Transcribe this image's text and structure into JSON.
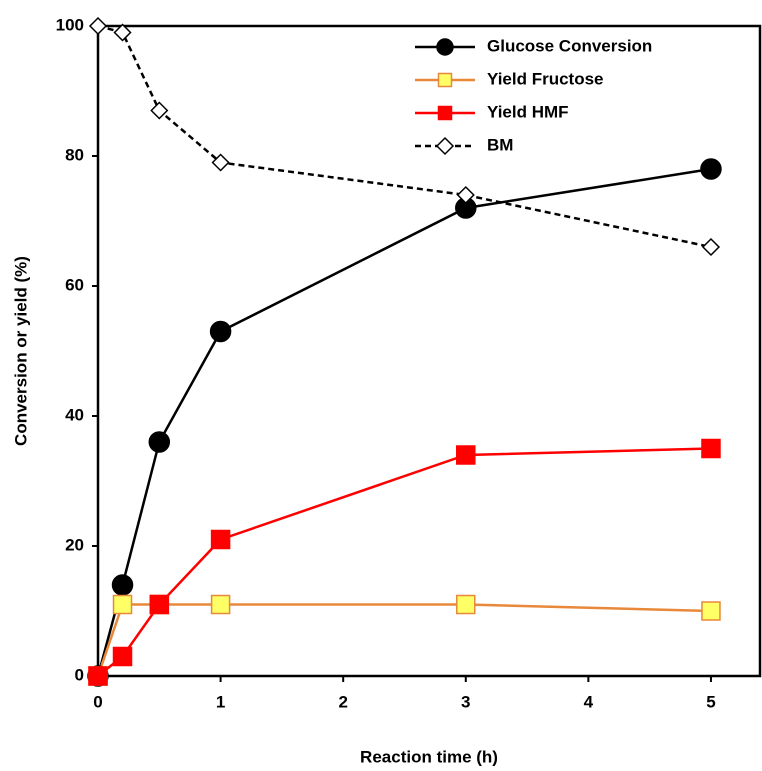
{
  "chart_data": {
    "type": "line",
    "x_label": "Reaction time (h)",
    "y_label": "Conversion or yield (%)",
    "x": [
      0,
      0.2,
      0.5,
      1,
      3,
      5
    ],
    "xlim": [
      0,
      5.4
    ],
    "xticks": [
      0,
      1,
      2,
      3,
      4,
      5
    ],
    "ylim": [
      0,
      100
    ],
    "yticks": [
      0,
      20,
      40,
      60,
      80,
      100
    ],
    "legend": "upper right",
    "series": [
      {
        "name": "Glucose Conversion",
        "color": "#000000",
        "marker": "circle",
        "marker_fill": "#000000",
        "dashed": false,
        "values": [
          0,
          14,
          36,
          53,
          72,
          78
        ]
      },
      {
        "name": "Yield Fructose",
        "color": "#e8883a",
        "marker": "square",
        "marker_fill": "#ffff66",
        "dashed": false,
        "values": [
          0,
          11,
          11,
          11,
          11,
          10
        ]
      },
      {
        "name": "Yield HMF",
        "color": "#ff0000",
        "marker": "square",
        "marker_fill": "#ff0000",
        "dashed": false,
        "values": [
          0,
          3,
          11,
          21,
          34,
          35
        ]
      },
      {
        "name": "BM",
        "color": "#000000",
        "marker": "diamond",
        "marker_fill": "#ffffff",
        "dashed": true,
        "values": [
          100,
          99,
          87,
          79,
          74,
          66
        ]
      }
    ]
  }
}
